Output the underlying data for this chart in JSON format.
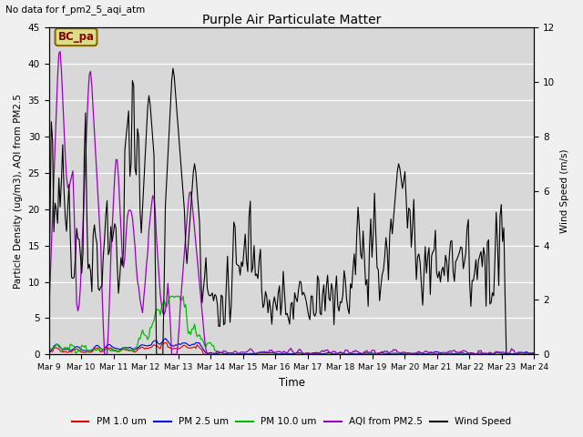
{
  "title": "Purple Air Particulate Matter",
  "subtitle": "No data for f_pm2_5_aqi_atm",
  "xlabel": "Time",
  "ylabel_left": "Particle Density (ug/m3), AQI from PM2.5",
  "ylabel_right": "Wind Speed (m/s)",
  "ylim_left": [
    0,
    45
  ],
  "ylim_right": [
    0,
    12
  ],
  "plot_bg_color": "#d8d8d8",
  "fig_bg_color": "#f0f0f0",
  "legend_entries": [
    "PM 1.0 um",
    "PM 2.5 um",
    "PM 10.0 um",
    "AQI from PM2.5",
    "Wind Speed"
  ],
  "legend_colors": [
    "#dd0000",
    "#0000dd",
    "#00bb00",
    "#9900bb",
    "#000000"
  ],
  "annotation_text": "BC_pa",
  "annotation_bg": "#dddd88",
  "annotation_border": "#886600",
  "xtick_labels": [
    "Mar 9",
    "Mar 10",
    "Mar 11",
    "Mar 12",
    "Mar 13",
    "Mar 14",
    "Mar 15",
    "Mar 16",
    "Mar 17",
    "Mar 18",
    "Mar 19",
    "Mar 20",
    "Mar 21",
    "Mar 22",
    "Mar 23",
    "Mar 24"
  ],
  "yticks_left": [
    0,
    5,
    10,
    15,
    20,
    25,
    30,
    35,
    40,
    45
  ],
  "yticks_right": [
    0,
    2,
    4,
    6,
    8,
    10,
    12
  ],
  "n_days": 16,
  "n_points": 384
}
